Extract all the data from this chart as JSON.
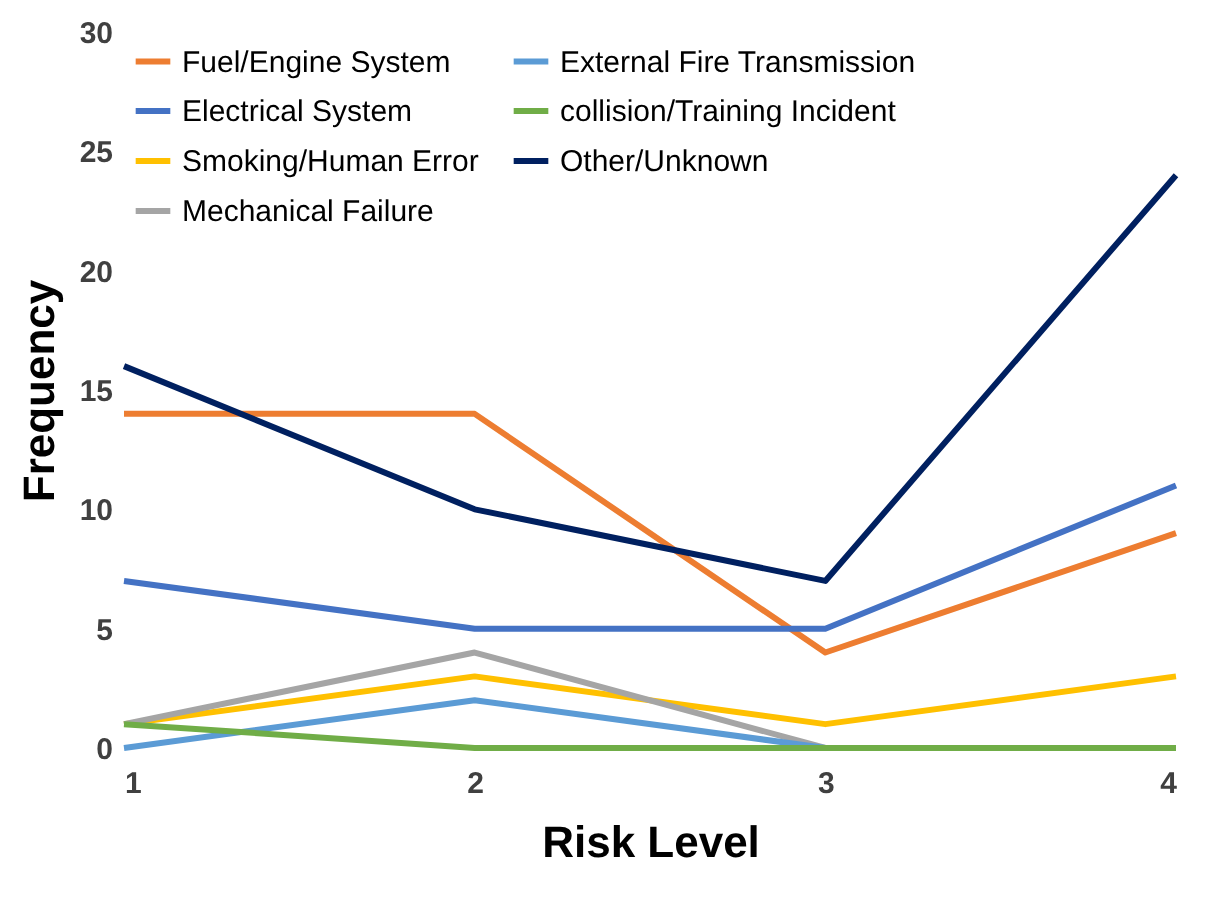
{
  "chart_data": {
    "type": "line",
    "xlabel": "Risk Level",
    "ylabel": "Frequency",
    "x": [
      1,
      2,
      3,
      4
    ],
    "xlim": [
      1,
      4
    ],
    "xticks": [
      1,
      2,
      3,
      4
    ],
    "ylim": [
      0,
      30
    ],
    "yticks": [
      0,
      5,
      10,
      15,
      20,
      25,
      30
    ],
    "grid": false,
    "legend": "top left",
    "marker": "none",
    "line_style": "solid",
    "series": [
      {
        "name": "Fuel/Engine System",
        "color": "#ed7d31",
        "values": [
          14,
          14,
          4,
          9
        ]
      },
      {
        "name": "Electrical System",
        "color": "#4472c4",
        "values": [
          7,
          5,
          5,
          11
        ]
      },
      {
        "name": "Smoking/Human Error",
        "color": "#ffc000",
        "values": [
          1,
          3,
          1,
          3
        ]
      },
      {
        "name": "Mechanical Failure",
        "color": "#a5a5a5",
        "values": [
          1,
          4,
          0,
          0
        ]
      },
      {
        "name": "External Fire Transmission",
        "color": "#5b9bd5",
        "values": [
          0,
          2,
          0,
          0
        ]
      },
      {
        "name": "collision/Training Incident",
        "color": "#70ad47",
        "values": [
          1,
          0,
          0,
          0
        ]
      },
      {
        "name": "Other/Unknown",
        "color": "#002060",
        "values": [
          16,
          10,
          7,
          24
        ]
      }
    ]
  }
}
